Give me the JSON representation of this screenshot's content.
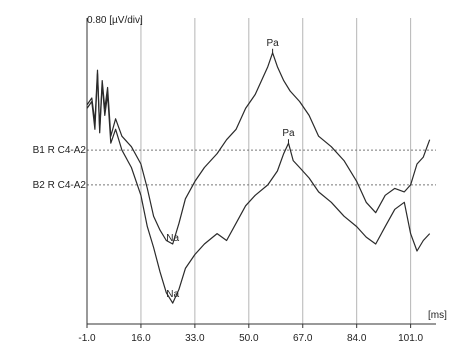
{
  "chart_data": {
    "type": "line",
    "title": "",
    "ylabel": "0.80 [µV/div]",
    "xlabel": "[ms]",
    "x_ticks": [
      -1.0,
      16.0,
      33.0,
      50.0,
      67.0,
      84.0,
      101.0
    ],
    "x_tick_labels": [
      "-1.0",
      "16.0",
      "33.0",
      "50.0",
      "67.0",
      "84.0",
      "101.0"
    ],
    "xlim": [
      -1.0,
      109.0
    ],
    "ylim": [
      -5.0,
      3.8
    ],
    "grid": "vertical lines at each x tick",
    "colors": {
      "line": "#2b2b2b",
      "grid": "#b5b5b5",
      "axis": "#333333",
      "baseline": "#777777"
    },
    "series": [
      {
        "name": "B1 R C4-A2",
        "baseline": 0,
        "points": [
          [
            -1.0,
            1.3
          ],
          [
            0.5,
            1.5
          ],
          [
            1.5,
            0.8
          ],
          [
            2.3,
            2.3
          ],
          [
            3.0,
            0.6
          ],
          [
            3.8,
            2.0
          ],
          [
            4.6,
            1.2
          ],
          [
            5.5,
            1.8
          ],
          [
            6.5,
            0.4
          ],
          [
            8.0,
            0.9
          ],
          [
            10.0,
            0.4
          ],
          [
            13.0,
            0.1
          ],
          [
            16.0,
            -0.4
          ],
          [
            18.0,
            -1.1
          ],
          [
            20.0,
            -1.9
          ],
          [
            22.0,
            -2.3
          ],
          [
            24.0,
            -2.6
          ],
          [
            26.0,
            -2.7
          ],
          [
            28.0,
            -2.1
          ],
          [
            30.0,
            -1.4
          ],
          [
            33.0,
            -0.9
          ],
          [
            36.0,
            -0.5
          ],
          [
            40.0,
            -0.1
          ],
          [
            43.0,
            0.3
          ],
          [
            46.0,
            0.6
          ],
          [
            49.0,
            1.2
          ],
          [
            52.0,
            1.6
          ],
          [
            54.0,
            2.0
          ],
          [
            56.0,
            2.4
          ],
          [
            57.5,
            2.8
          ],
          [
            59.0,
            2.4
          ],
          [
            61.0,
            2.0
          ],
          [
            63.0,
            1.7
          ],
          [
            66.0,
            1.4
          ],
          [
            69.0,
            1.0
          ],
          [
            72.0,
            0.4
          ],
          [
            76.0,
            0.1
          ],
          [
            80.0,
            -0.3
          ],
          [
            84.0,
            -0.9
          ],
          [
            87.0,
            -1.5
          ],
          [
            90.0,
            -1.8
          ],
          [
            93.0,
            -1.3
          ],
          [
            96.0,
            -1.1
          ],
          [
            99.0,
            -1.2
          ],
          [
            101.0,
            -1.0
          ],
          [
            103.0,
            -0.4
          ],
          [
            105.0,
            -0.2
          ],
          [
            107.0,
            0.3
          ]
        ]
      },
      {
        "name": "B2 R C4-A2",
        "baseline": -1.0,
        "points": [
          [
            -1.0,
            1.2
          ],
          [
            0.5,
            1.4
          ],
          [
            1.5,
            0.6
          ],
          [
            2.3,
            2.2
          ],
          [
            3.0,
            0.5
          ],
          [
            3.8,
            1.9
          ],
          [
            4.6,
            1.0
          ],
          [
            5.5,
            1.6
          ],
          [
            6.5,
            0.2
          ],
          [
            8.0,
            0.6
          ],
          [
            10.0,
            0.0
          ],
          [
            13.0,
            -0.5
          ],
          [
            16.0,
            -1.3
          ],
          [
            18.0,
            -2.2
          ],
          [
            20.0,
            -2.8
          ],
          [
            22.0,
            -3.5
          ],
          [
            24.0,
            -4.1
          ],
          [
            26.0,
            -4.4
          ],
          [
            28.0,
            -4.0
          ],
          [
            30.0,
            -3.4
          ],
          [
            33.0,
            -3.0
          ],
          [
            36.0,
            -2.7
          ],
          [
            40.0,
            -2.4
          ],
          [
            43.0,
            -2.6
          ],
          [
            46.0,
            -2.1
          ],
          [
            49.0,
            -1.6
          ],
          [
            52.0,
            -1.3
          ],
          [
            56.0,
            -1.0
          ],
          [
            59.0,
            -0.6
          ],
          [
            61.0,
            -0.1
          ],
          [
            62.5,
            0.2
          ],
          [
            64.0,
            -0.3
          ],
          [
            66.0,
            -0.5
          ],
          [
            69.0,
            -0.8
          ],
          [
            72.0,
            -1.2
          ],
          [
            76.0,
            -1.5
          ],
          [
            80.0,
            -1.9
          ],
          [
            84.0,
            -2.2
          ],
          [
            87.0,
            -2.5
          ],
          [
            90.0,
            -2.7
          ],
          [
            93.0,
            -2.2
          ],
          [
            96.0,
            -1.7
          ],
          [
            99.0,
            -1.5
          ],
          [
            101.0,
            -2.4
          ],
          [
            103.0,
            -2.9
          ],
          [
            105.0,
            -2.6
          ],
          [
            107.0,
            -2.4
          ]
        ]
      }
    ],
    "annotations": [
      {
        "text": "Pa",
        "x": 57.5,
        "y": 2.8
      },
      {
        "text": "Pa",
        "x": 62.5,
        "y": 0.2
      },
      {
        "text": "Na",
        "x": 26.0,
        "y": -2.7
      },
      {
        "text": "Na",
        "x": 26.0,
        "y": -4.4
      }
    ]
  }
}
